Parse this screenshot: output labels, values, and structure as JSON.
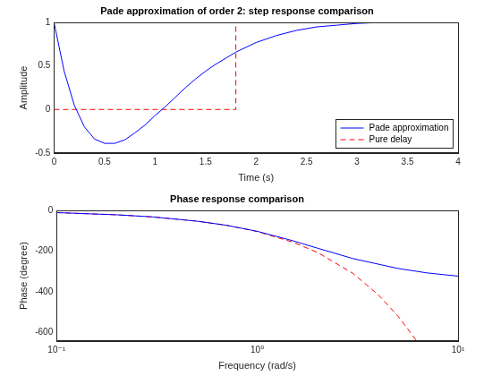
{
  "chart_data": [
    {
      "type": "line",
      "title": "Pade approximation of order 2: step response comparison",
      "xlabel": "Time (s)",
      "ylabel": "Amplitude",
      "xlim": [
        0,
        4
      ],
      "xticks": [
        0,
        0.5,
        1,
        1.5,
        2,
        2.5,
        3,
        3.5,
        4
      ],
      "ylim": [
        -0.5,
        1
      ],
      "yticks": [
        -0.5,
        0,
        0.5,
        1
      ],
      "grid": false,
      "legend": "bottom right",
      "series": [
        {
          "name": "Pade approximation",
          "color": "#0000ff",
          "line_style": "solid",
          "x": [
            0,
            0.1,
            0.2,
            0.3,
            0.4,
            0.5,
            0.6,
            0.7,
            0.8,
            0.9,
            1.0,
            1.1,
            1.2,
            1.3,
            1.4,
            1.5,
            1.6,
            1.7,
            1.8,
            2.0,
            2.2,
            2.4,
            2.6,
            2.8,
            3.0,
            3.2,
            3.4,
            3.6
          ],
          "values": [
            1,
            0.44,
            0.05,
            -0.2,
            -0.34,
            -0.39,
            -0.39,
            -0.35,
            -0.27,
            -0.18,
            -0.07,
            0.03,
            0.14,
            0.25,
            0.35,
            0.44,
            0.52,
            0.59,
            0.66,
            0.77,
            0.85,
            0.91,
            0.95,
            0.97,
            0.99,
            1.0,
            1.0,
            1.0
          ]
        },
        {
          "name": "Pure delay",
          "color": "#ff0000",
          "line_style": "dashed",
          "x": [
            0,
            1.8,
            1.8,
            3.6
          ],
          "values": [
            0,
            0,
            1,
            1
          ]
        }
      ]
    },
    {
      "type": "line",
      "title": "Phase response comparison",
      "xlabel": "Frequency (rad/s)",
      "ylabel": "Phase (degree)",
      "log": "x",
      "xlim": [
        0.1,
        10
      ],
      "xticks": [
        {
          "value": 0.1,
          "label": "10⁻¹"
        },
        {
          "value": 1,
          "label": "10⁰"
        },
        {
          "value": 10,
          "label": "10¹"
        }
      ],
      "ylim": [
        -640,
        0
      ],
      "yticks": [
        -600,
        -400,
        -200,
        0
      ],
      "grid": false,
      "series": [
        {
          "name": "Pade approximation",
          "color": "#0000ff",
          "line_style": "solid",
          "x": [
            0.1,
            0.2,
            0.3,
            0.5,
            0.7,
            1,
            1.5,
            2,
            3,
            5,
            7,
            10
          ],
          "values": [
            -10,
            -21,
            -31,
            -52,
            -72,
            -102,
            -148,
            -185,
            -236,
            -284,
            -306,
            -322
          ]
        },
        {
          "name": "Pure delay",
          "color": "#ff0000",
          "line_style": "dashed",
          "x": [
            0.1,
            0.2,
            0.3,
            0.5,
            0.7,
            1,
            1.5,
            2,
            3,
            4,
            5,
            6,
            6.2
          ],
          "values": [
            -10,
            -21,
            -31,
            -52,
            -72,
            -103,
            -155,
            -206,
            -309,
            -413,
            -516,
            -619,
            -639
          ]
        }
      ]
    }
  ]
}
